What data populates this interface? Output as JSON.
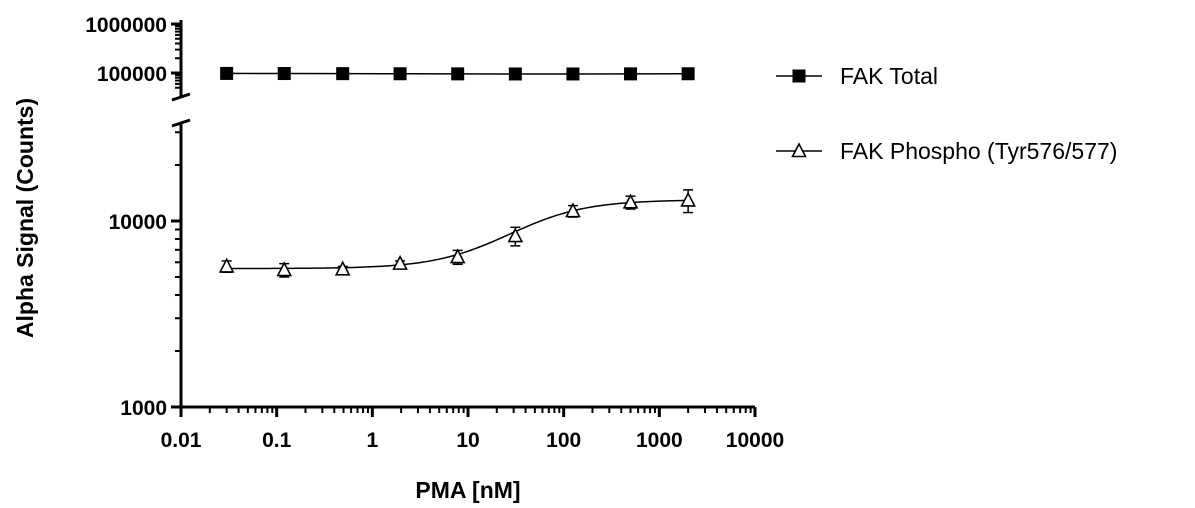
{
  "chart_data": {
    "type": "scatter",
    "xlabel": "PMA [nM]",
    "ylabel": "Alpha Signal (Counts)",
    "x_scale": "log",
    "y_scale": "log",
    "xlim": [
      0.03,
      10000
    ],
    "ylim_lower_segment": [
      1000,
      30000
    ],
    "ylim_upper_segment": [
      50000,
      1000000
    ],
    "x_tick_labels": [
      "0.01",
      "0.1",
      "1",
      "10",
      "100",
      "1000",
      "10000"
    ],
    "y_tick_labels": [
      "1000",
      "10000",
      "100000",
      "1000000"
    ],
    "x": [
      0.03,
      0.12,
      0.49,
      1.95,
      7.8,
      31.25,
      125,
      500,
      2000
    ],
    "series": [
      {
        "name": "FAK Total",
        "marker": "filled-square",
        "values": [
          98000,
          97500,
          97000,
          96500,
          96000,
          95500,
          95500,
          96000,
          96500
        ],
        "errors": [
          0,
          0,
          0,
          0,
          0,
          0,
          0,
          0,
          0
        ]
      },
      {
        "name": "FAK Phospho (Tyr576/577)",
        "marker": "open-triangle",
        "values": [
          5700,
          5450,
          5500,
          5900,
          6400,
          8300,
          11300,
          12600,
          12900
        ],
        "errors": [
          400,
          450,
          200,
          200,
          550,
          950,
          800,
          1000,
          1800
        ]
      }
    ],
    "fit_curve": {
      "FAK Phospho (Tyr576/577)": {
        "bottom": 5550,
        "top": 13000,
        "ec50": 40,
        "hill": 1.1
      }
    },
    "legend": "right",
    "grid": false
  }
}
